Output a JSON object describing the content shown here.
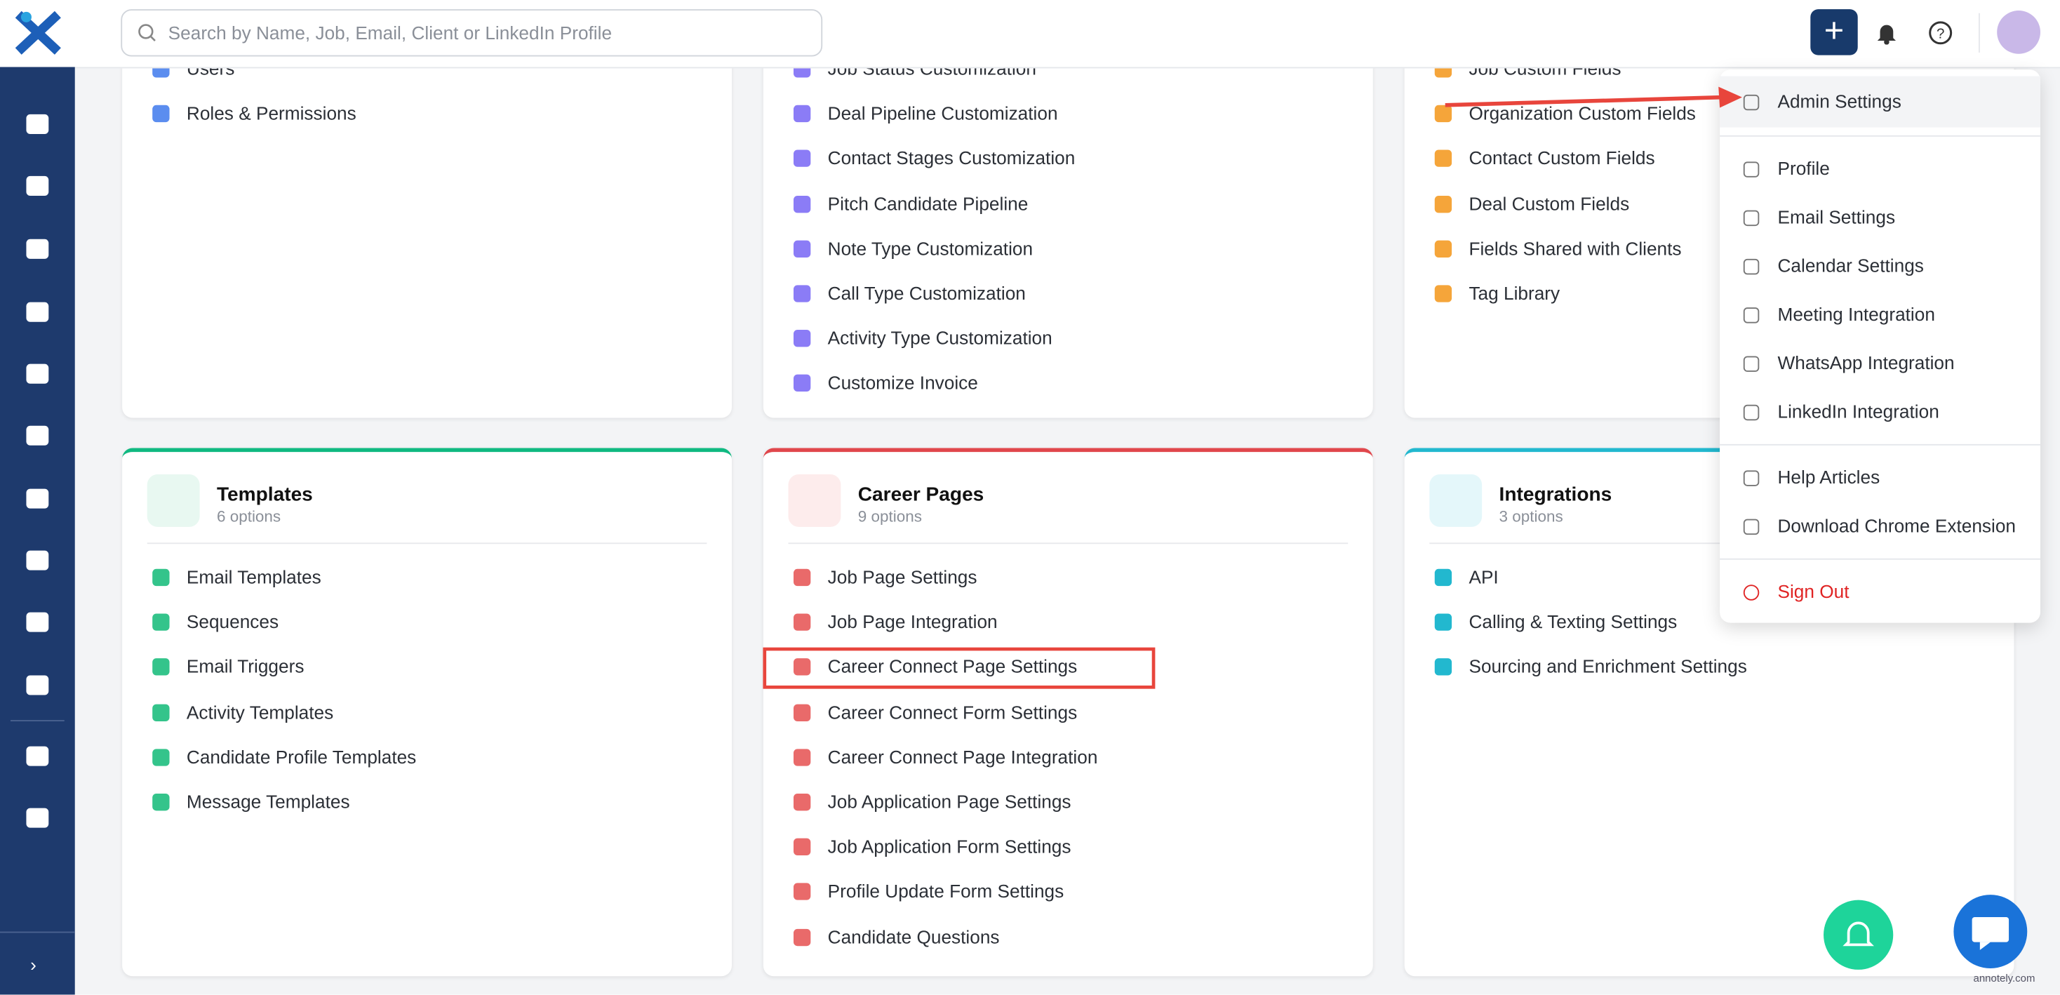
{
  "header": {
    "search_placeholder": "Search by Name, Job, Email, Client or LinkedIn Profile"
  },
  "sections": [
    {
      "items": [
        "Users",
        "Roles & Permissions"
      ]
    },
    {
      "items": [
        "Job Status Customization",
        "Deal Pipeline Customization",
        "Contact Stages Customization",
        "Pitch Candidate Pipeline",
        "Note Type Customization",
        "Call Type Customization",
        "Activity Type Customization",
        "Customize Invoice"
      ]
    },
    {
      "items": [
        "Job Custom Fields",
        "Organization Custom Fields",
        "Contact Custom Fields",
        "Deal Custom Fields",
        "Fields Shared with Clients",
        "Tag Library"
      ]
    },
    {
      "title": "Templates",
      "subtitle": "6 options",
      "items": [
        "Email Templates",
        "Sequences",
        "Email Triggers",
        "Activity Templates",
        "Candidate Profile Templates",
        "Message Templates"
      ]
    },
    {
      "title": "Career Pages",
      "subtitle": "9 options",
      "items": [
        "Job Page Settings",
        "Job Page Integration",
        "Career Connect Page Settings",
        "Career Connect Form Settings",
        "Career Connect Page Integration",
        "Job Application Page Settings",
        "Job Application Form Settings",
        "Profile Update Form Settings",
        "Candidate Questions"
      ]
    },
    {
      "title": "Integrations",
      "subtitle": "3 options",
      "items": [
        "API",
        "Calling & Texting Settings",
        "Sourcing and Enrichment Settings"
      ]
    }
  ],
  "menu": {
    "groups": [
      [
        "Admin Settings"
      ],
      [
        "Profile",
        "Email Settings",
        "Calendar Settings",
        "Meeting Integration",
        "WhatsApp Integration",
        "LinkedIn Integration"
      ],
      [
        "Help Articles",
        "Download Chrome Extension"
      ],
      [
        "Sign Out"
      ]
    ]
  },
  "watermark": "annotely.com"
}
